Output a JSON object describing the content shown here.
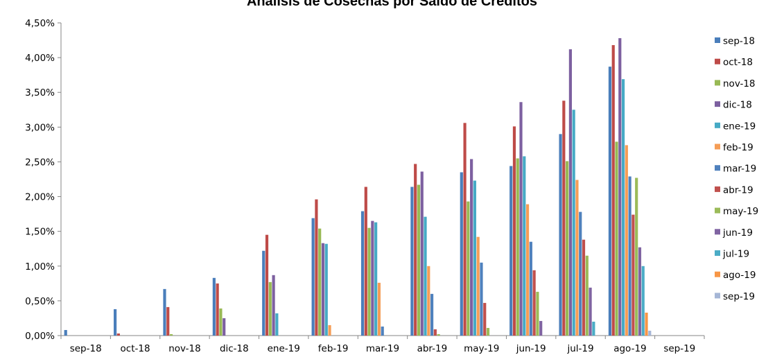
{
  "chart_data": {
    "type": "bar",
    "title": "Análisis de Cosechas por Saldo de Créditos",
    "xlabel": "",
    "ylabel": "",
    "ylim": [
      0,
      0.045
    ],
    "yticks": [
      0,
      0.005,
      0.01,
      0.015,
      0.02,
      0.025,
      0.03,
      0.035,
      0.04,
      0.045
    ],
    "ytick_labels": [
      "0,00%",
      "0,50%",
      "1,00%",
      "1,50%",
      "2,00%",
      "2,50%",
      "3,00%",
      "3,50%",
      "4,00%",
      "4,50%"
    ],
    "grid": false,
    "legend_position": "right",
    "categories": [
      "sep-18",
      "oct-18",
      "nov-18",
      "dic-18",
      "ene-19",
      "feb-19",
      "mar-19",
      "abr-19",
      "may-19",
      "jun-19",
      "jul-19",
      "ago-19",
      "sep-19"
    ],
    "series": [
      {
        "name": "sep-18",
        "color": "#4A7EBB",
        "values": [
          0.0008,
          0.0038,
          0.0067,
          0.0083,
          0.0122,
          0.0169,
          0.0179,
          0.0214,
          0.0235,
          0.0244,
          0.029,
          0.0387,
          null
        ]
      },
      {
        "name": "oct-18",
        "color": "#BE4B48",
        "values": [
          null,
          0.0003,
          0.0041,
          0.0075,
          0.0145,
          0.0196,
          0.0214,
          0.0247,
          0.0306,
          0.0301,
          0.0338,
          0.0418,
          null
        ]
      },
      {
        "name": "nov-18",
        "color": "#98B954",
        "values": [
          null,
          null,
          0.0002,
          0.0039,
          0.0077,
          0.0154,
          0.0155,
          0.0217,
          0.0193,
          0.0255,
          0.0251,
          0.0279,
          null
        ]
      },
      {
        "name": "dic-18",
        "color": "#7D60A0",
        "values": [
          null,
          null,
          null,
          0.0025,
          0.0087,
          0.0133,
          0.0165,
          0.0236,
          0.0254,
          0.0336,
          0.0412,
          0.0428,
          null
        ]
      },
      {
        "name": "ene-19",
        "color": "#46AAC5",
        "values": [
          null,
          null,
          null,
          null,
          0.0032,
          0.0132,
          0.0163,
          0.0171,
          0.0223,
          0.0258,
          0.0325,
          0.0369,
          null
        ]
      },
      {
        "name": "feb-19",
        "color": "#F59D56",
        "values": [
          null,
          null,
          null,
          null,
          null,
          0.0015,
          0.0076,
          0.01,
          0.0142,
          0.0189,
          0.0224,
          0.0274,
          null
        ]
      },
      {
        "name": "mar-19",
        "color": "#4F81BD",
        "values": [
          null,
          null,
          null,
          null,
          null,
          null,
          0.0013,
          0.006,
          0.0105,
          0.0135,
          0.0178,
          0.0229,
          null
        ]
      },
      {
        "name": "abr-19",
        "color": "#C0504D",
        "values": [
          null,
          null,
          null,
          null,
          null,
          null,
          null,
          0.0009,
          0.0047,
          0.0094,
          0.0138,
          0.0174,
          null
        ]
      },
      {
        "name": "may-19",
        "color": "#9BBB59",
        "values": [
          null,
          null,
          null,
          null,
          null,
          null,
          null,
          0.0002,
          0.0011,
          0.0063,
          0.0115,
          0.0227,
          null
        ]
      },
      {
        "name": "jun-19",
        "color": "#8064A2",
        "values": [
          null,
          null,
          null,
          null,
          null,
          null,
          null,
          null,
          null,
          0.0021,
          0.0069,
          0.0127,
          null
        ]
      },
      {
        "name": "jul-19",
        "color": "#4BACC6",
        "values": [
          null,
          null,
          null,
          null,
          null,
          null,
          null,
          null,
          null,
          null,
          0.002,
          0.01,
          null
        ]
      },
      {
        "name": "ago-19",
        "color": "#F79646",
        "values": [
          null,
          null,
          null,
          null,
          null,
          null,
          null,
          null,
          null,
          null,
          null,
          0.0033,
          null
        ]
      },
      {
        "name": "sep-19",
        "color": "#A5B6D6",
        "values": [
          null,
          null,
          null,
          null,
          null,
          null,
          null,
          null,
          null,
          null,
          null,
          0.0007,
          null
        ]
      }
    ]
  }
}
